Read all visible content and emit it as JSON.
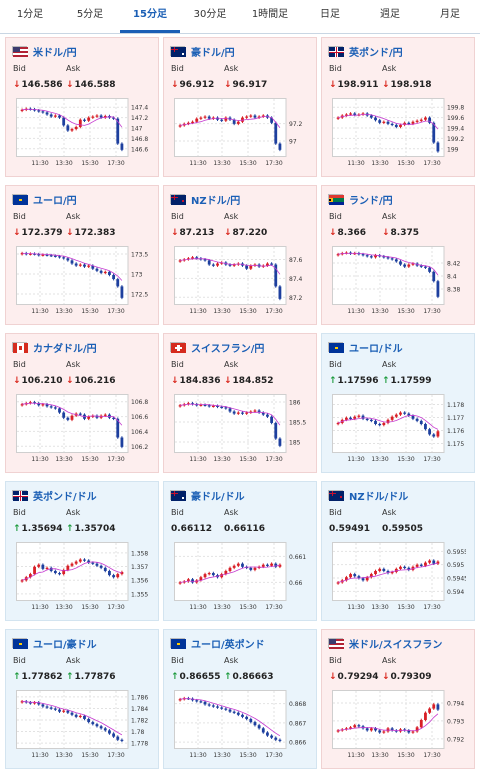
{
  "tabs": [
    {
      "label": "1分足",
      "active": false
    },
    {
      "label": "5分足",
      "active": false
    },
    {
      "label": "15分足",
      "active": true
    },
    {
      "label": "30分足",
      "active": false
    },
    {
      "label": "1時間足",
      "active": false
    },
    {
      "label": "日足",
      "active": false
    },
    {
      "label": "週足",
      "active": false
    },
    {
      "label": "月足",
      "active": false
    }
  ],
  "labels": {
    "bid": "Bid",
    "ask": "Ask"
  },
  "colors": {
    "bull": "#d81f26",
    "bear": "#1d3f9e",
    "ma": "#c63ad0",
    "down": "#d9261c",
    "up": "#1b9a3c"
  },
  "x_ticks": [
    "11:30",
    "13:30",
    "15:30",
    "17:30"
  ],
  "pairs": [
    {
      "name": "米ドル/円",
      "bid": "146.586",
      "ask": "146.588",
      "direction": "down",
      "theme": "red",
      "flag": "us-jp",
      "chart_data": {
        "type": "candlestick",
        "y_ticks": [
          "147.4",
          "147.2",
          "147",
          "146.8",
          "146.6"
        ],
        "ylim": [
          146.5,
          147.5
        ],
        "shape": [
          0.85,
          0.87,
          0.86,
          0.84,
          0.82,
          0.8,
          0.76,
          0.72,
          0.74,
          0.7,
          0.55,
          0.45,
          0.48,
          0.52,
          0.66,
          0.64,
          0.7,
          0.72,
          0.74,
          0.7,
          0.73,
          0.7,
          0.68,
          0.2,
          0.08
        ]
      }
    },
    {
      "name": "豪ドル/円",
      "bid": "96.912",
      "ask": "96.917",
      "direction": "down",
      "theme": "red",
      "flag": "au-jp",
      "chart_data": {
        "type": "candlestick",
        "y_ticks": [
          "97.2",
          "97"
        ],
        "ylim": [
          96.85,
          97.45
        ],
        "shape": [
          0.55,
          0.58,
          0.6,
          0.62,
          0.68,
          0.7,
          0.72,
          0.68,
          0.7,
          0.66,
          0.64,
          0.7,
          0.66,
          0.58,
          0.62,
          0.7,
          0.72,
          0.74,
          0.7,
          0.72,
          0.74,
          0.7,
          0.6,
          0.2,
          0.08
        ]
      }
    },
    {
      "name": "英ポンド/円",
      "bid": "198.911",
      "ask": "198.918",
      "direction": "down",
      "theme": "red",
      "flag": "uk-jp",
      "chart_data": {
        "type": "candlestick",
        "y_ticks": [
          "199.8",
          "199.6",
          "199.4",
          "199.2",
          "199"
        ],
        "ylim": [
          198.9,
          199.9
        ],
        "shape": [
          0.7,
          0.74,
          0.76,
          0.78,
          0.75,
          0.76,
          0.78,
          0.74,
          0.7,
          0.65,
          0.6,
          0.62,
          0.58,
          0.56,
          0.52,
          0.56,
          0.6,
          0.58,
          0.62,
          0.64,
          0.66,
          0.7,
          0.6,
          0.22,
          0.05
        ]
      }
    },
    {
      "name": "ユーロ/円",
      "bid": "172.379",
      "ask": "172.383",
      "direction": "down",
      "theme": "red",
      "flag": "eu-jp",
      "chart_data": {
        "type": "candlestick",
        "y_ticks": [
          "173.5",
          "173",
          "172.5"
        ],
        "ylim": [
          172.3,
          173.6
        ],
        "shape": [
          0.94,
          0.92,
          0.93,
          0.92,
          0.9,
          0.91,
          0.9,
          0.89,
          0.88,
          0.86,
          0.84,
          0.8,
          0.74,
          0.7,
          0.72,
          0.68,
          0.7,
          0.64,
          0.6,
          0.56,
          0.58,
          0.52,
          0.44,
          0.3,
          0.08
        ]
      }
    },
    {
      "name": "NZドル/円",
      "bid": "87.213",
      "ask": "87.220",
      "direction": "down",
      "theme": "red",
      "flag": "nz-jp",
      "chart_data": {
        "type": "candlestick",
        "y_ticks": [
          "87.6",
          "87.4",
          "87.2"
        ],
        "ylim": [
          87.15,
          87.7
        ],
        "shape": [
          0.8,
          0.82,
          0.84,
          0.86,
          0.84,
          0.82,
          0.8,
          0.72,
          0.7,
          0.74,
          0.76,
          0.72,
          0.7,
          0.72,
          0.74,
          0.7,
          0.64,
          0.7,
          0.72,
          0.68,
          0.7,
          0.74,
          0.72,
          0.3,
          0.06
        ]
      }
    },
    {
      "name": "ランド/円",
      "bid": "8.366",
      "ask": "8.375",
      "direction": "down",
      "theme": "red",
      "flag": "za-jp",
      "chart_data": {
        "type": "candlestick",
        "y_ticks": [
          "8.42",
          "8.4",
          "8.38"
        ],
        "ylim": [
          8.36,
          8.44
        ],
        "shape": [
          0.92,
          0.94,
          0.95,
          0.93,
          0.94,
          0.92,
          0.9,
          0.88,
          0.86,
          0.9,
          0.88,
          0.86,
          0.84,
          0.82,
          0.78,
          0.72,
          0.68,
          0.72,
          0.74,
          0.7,
          0.68,
          0.66,
          0.58,
          0.4,
          0.1
        ]
      }
    },
    {
      "name": "カナダドル/円",
      "bid": "106.210",
      "ask": "106.216",
      "direction": "down",
      "theme": "red",
      "flag": "ca-jp",
      "chart_data": {
        "type": "candlestick",
        "y_ticks": [
          "106.8",
          "106.6",
          "106.4",
          "106.2"
        ],
        "ylim": [
          106.15,
          106.85
        ],
        "shape": [
          0.88,
          0.9,
          0.92,
          0.9,
          0.86,
          0.88,
          0.84,
          0.82,
          0.8,
          0.72,
          0.62,
          0.58,
          0.66,
          0.7,
          0.68,
          0.6,
          0.64,
          0.66,
          0.62,
          0.66,
          0.68,
          0.62,
          0.6,
          0.24,
          0.06
        ]
      }
    },
    {
      "name": "スイスフラン/円",
      "bid": "184.836",
      "ask": "184.852",
      "direction": "down",
      "theme": "red",
      "flag": "ch-jp",
      "chart_data": {
        "type": "candlestick",
        "y_ticks": [
          "186",
          "185.5",
          "185"
        ],
        "ylim": [
          184.8,
          186.1
        ],
        "shape": [
          0.86,
          0.88,
          0.9,
          0.88,
          0.86,
          0.87,
          0.86,
          0.84,
          0.85,
          0.83,
          0.82,
          0.8,
          0.74,
          0.7,
          0.72,
          0.7,
          0.72,
          0.74,
          0.76,
          0.72,
          0.68,
          0.64,
          0.52,
          0.22,
          0.08
        ]
      }
    },
    {
      "name": "ユーロ/ドル",
      "bid": "1.17596",
      "ask": "1.17599",
      "direction": "up",
      "theme": "blue",
      "flag": "eu-us",
      "chart_data": {
        "type": "candlestick",
        "y_ticks": [
          "1.178",
          "1.177",
          "1.176",
          "1.175"
        ],
        "ylim": [
          1.1745,
          1.1785
        ],
        "shape": [
          0.52,
          0.58,
          0.62,
          0.6,
          0.64,
          0.66,
          0.6,
          0.58,
          0.56,
          0.5,
          0.48,
          0.52,
          0.58,
          0.64,
          0.68,
          0.72,
          0.7,
          0.66,
          0.6,
          0.56,
          0.5,
          0.4,
          0.3,
          0.26,
          0.36
        ]
      }
    },
    {
      "name": "英ポンド/ドル",
      "bid": "1.35694",
      "ask": "1.35704",
      "direction": "up",
      "theme": "blue",
      "flag": "uk-us",
      "chart_data": {
        "type": "candlestick",
        "y_ticks": [
          "1.358",
          "1.357",
          "1.356",
          "1.355"
        ],
        "ylim": [
          1.3547,
          1.3585
        ],
        "shape": [
          0.34,
          0.4,
          0.46,
          0.6,
          0.64,
          0.56,
          0.58,
          0.52,
          0.48,
          0.46,
          0.54,
          0.62,
          0.66,
          0.7,
          0.74,
          0.72,
          0.68,
          0.66,
          0.62,
          0.58,
          0.52,
          0.44,
          0.4,
          0.46,
          0.5
        ]
      }
    },
    {
      "name": "豪ドル/ドル",
      "bid": "0.66112",
      "ask": "0.66116",
      "direction": "none",
      "theme": "blue",
      "flag": "au-us",
      "chart_data": {
        "type": "candlestick",
        "y_ticks": [
          "0.661",
          "0.66"
        ],
        "ylim": [
          0.6594,
          0.6614
        ],
        "shape": [
          0.3,
          0.32,
          0.36,
          0.3,
          0.34,
          0.4,
          0.46,
          0.48,
          0.44,
          0.4,
          0.46,
          0.52,
          0.58,
          0.62,
          0.66,
          0.6,
          0.58,
          0.54,
          0.58,
          0.6,
          0.64,
          0.62,
          0.66,
          0.6,
          0.64
        ]
      }
    },
    {
      "name": "NZドル/ドル",
      "bid": "0.59491",
      "ask": "0.59505",
      "direction": "none",
      "theme": "blue",
      "flag": "nz-us",
      "chart_data": {
        "type": "candlestick",
        "y_ticks": [
          "0.5955",
          "0.595",
          "0.5945",
          "0.594"
        ],
        "ylim": [
          0.59375,
          0.5957
        ],
        "shape": [
          0.3,
          0.34,
          0.4,
          0.46,
          0.42,
          0.38,
          0.34,
          0.4,
          0.46,
          0.52,
          0.56,
          0.52,
          0.48,
          0.5,
          0.56,
          0.6,
          0.58,
          0.54,
          0.6,
          0.64,
          0.62,
          0.68,
          0.72,
          0.66,
          0.7
        ]
      }
    },
    {
      "name": "ユーロ/豪ドル",
      "bid": "1.77862",
      "ask": "1.77876",
      "direction": "up",
      "theme": "blue",
      "flag": "eu-au",
      "chart_data": {
        "type": "candlestick",
        "y_ticks": [
          "1.786",
          "1.784",
          "1.782",
          "1.78",
          "1.778"
        ],
        "ylim": [
          1.7775,
          1.7865
        ],
        "shape": [
          0.86,
          0.84,
          0.82,
          0.84,
          0.8,
          0.76,
          0.74,
          0.72,
          0.7,
          0.66,
          0.68,
          0.64,
          0.6,
          0.56,
          0.58,
          0.52,
          0.46,
          0.42,
          0.38,
          0.34,
          0.3,
          0.24,
          0.18,
          0.12,
          0.1
        ]
      }
    },
    {
      "name": "ユーロ/英ポンド",
      "bid": "0.86655",
      "ask": "0.86663",
      "direction": "up",
      "theme": "blue",
      "flag": "eu-uk",
      "chart_data": {
        "type": "candlestick",
        "y_ticks": [
          "0.868",
          "0.867",
          "0.866"
        ],
        "ylim": [
          0.8658,
          0.8685
        ],
        "shape": [
          0.9,
          0.92,
          0.91,
          0.88,
          0.86,
          0.85,
          0.8,
          0.78,
          0.76,
          0.74,
          0.72,
          0.7,
          0.66,
          0.64,
          0.6,
          0.56,
          0.52,
          0.46,
          0.4,
          0.34,
          0.26,
          0.2,
          0.16,
          0.12,
          0.1
        ]
      }
    },
    {
      "name": "米ドル/スイスフラン",
      "bid": "0.79294",
      "ask": "0.79309",
      "direction": "down",
      "theme": "red",
      "flag": "us-ch",
      "chart_data": {
        "type": "candlestick",
        "y_ticks": [
          "0.794",
          "0.793",
          "0.792"
        ],
        "ylim": [
          0.7916,
          0.7945
        ],
        "shape": [
          0.3,
          0.32,
          0.34,
          0.36,
          0.4,
          0.38,
          0.34,
          0.3,
          0.34,
          0.3,
          0.26,
          0.28,
          0.34,
          0.3,
          0.28,
          0.32,
          0.3,
          0.26,
          0.28,
          0.36,
          0.5,
          0.64,
          0.72,
          0.8,
          0.7
        ]
      }
    }
  ]
}
